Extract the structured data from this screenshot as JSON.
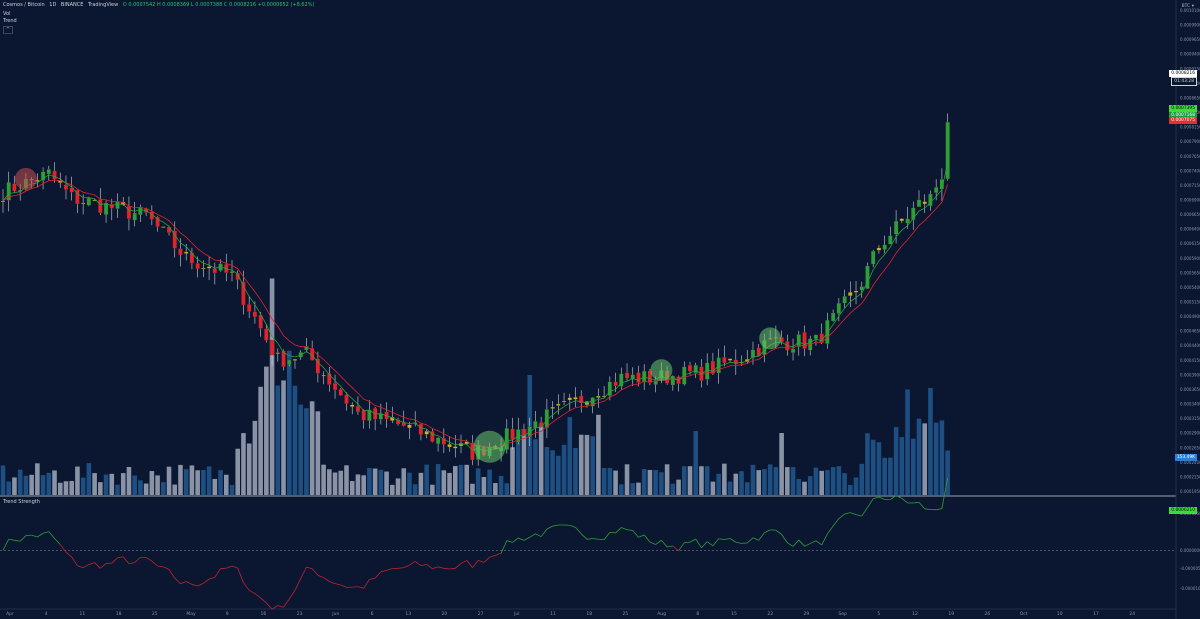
{
  "header": {
    "symbol": "Cosmos / Bitcoin",
    "interval": "1D",
    "exchange": "BINANCE",
    "source": "TradingView",
    "ohlc": "O 0.0007542  H 0.0008369  L 0.0007388  C 0.0008216  +0.0000652 (+8.62%)",
    "vol_label": "Vol",
    "trend_label": "Trend",
    "toggle_label": "^",
    "indicator_label": "Trend Strength",
    "currency": "BTC ▾"
  },
  "price_tags": {
    "last": "0.0008216",
    "last_time": "01:43:28",
    "ma_green": "0.0007395",
    "ma_green2": "0.0007168",
    "ma_red": "0.0007075",
    "volume": "153.49K",
    "indicator": "0.0000210"
  },
  "chart_data": {
    "type": "candlestick",
    "title": "Cosmos / Bitcoin · 1D · BINANCE",
    "price_axis": {
      "ylim": [
        0.000195,
        0.00101
      ],
      "ticks": [
        "0.0010100",
        "0.0009900",
        "0.0009650",
        "0.0009400",
        "0.0009150",
        "0.0008900",
        "0.0008650",
        "0.0008400",
        "0.0008150",
        "0.0007900",
        "0.0007650",
        "0.0007400",
        "0.0007150",
        "0.0006900",
        "0.0006650",
        "0.0006400",
        "0.0006150",
        "0.0005900",
        "0.0005650",
        "0.0005400",
        "0.0005150",
        "0.0004900",
        "0.0004650",
        "0.0004400",
        "0.0004150",
        "0.0003900",
        "0.0003650",
        "0.0003400",
        "0.0003150",
        "0.0002900",
        "0.0002650",
        "0.0002400",
        "0.0002150",
        "0.0001950"
      ]
    },
    "indicator_axis": {
      "ylim": [
        -1.3e-05,
        1.2e-05
      ],
      "ticks": [
        "0.0000050",
        "0.0000000",
        "-0.0000050",
        "-0.0000100"
      ]
    },
    "time_axis": [
      "Apr",
      "4",
      "11",
      "18",
      "25",
      "May",
      "9",
      "16",
      "23",
      "Jun",
      "6",
      "13",
      "20",
      "27",
      "Jul",
      "11",
      "18",
      "25",
      "Aug",
      "8",
      "15",
      "22",
      "29",
      "Sep",
      "5",
      "12",
      "19",
      "26",
      "Oct",
      "10",
      "17",
      "24"
    ],
    "anchors": [
      [
        0,
        0.0007
      ],
      [
        8,
        0.00073
      ],
      [
        12,
        0.00069
      ],
      [
        25,
        0.00066
      ],
      [
        32,
        0.00059
      ],
      [
        40,
        0.00056
      ],
      [
        48,
        0.00042
      ],
      [
        53,
        0.00043
      ],
      [
        62,
        0.00033
      ],
      [
        70,
        0.00031
      ],
      [
        82,
        0.000265
      ],
      [
        90,
        0.0003
      ],
      [
        100,
        0.00035
      ],
      [
        108,
        0.00039
      ],
      [
        114,
        0.00039
      ],
      [
        122,
        0.0004
      ],
      [
        128,
        0.00042
      ],
      [
        134,
        0.00045
      ],
      [
        142,
        0.00045
      ],
      [
        150,
        0.00055
      ],
      [
        153,
        0.00061
      ],
      [
        156,
        0.00064
      ],
      [
        160,
        0.00068
      ],
      [
        162,
        0.00069
      ],
      [
        164,
        0.00073
      ],
      [
        165,
        0.000822
      ]
    ],
    "volume_peaks": [
      [
        47,
        152
      ],
      [
        50,
        98
      ],
      [
        92,
        76
      ],
      [
        104,
        60
      ],
      [
        121,
        64
      ],
      [
        136,
        62
      ],
      [
        158,
        85
      ],
      [
        162,
        72
      ]
    ],
    "highlights": [
      {
        "bar": 4,
        "color": "red"
      },
      {
        "bar": 85,
        "color": "green",
        "size": "large"
      },
      {
        "bar": 115,
        "color": "green"
      },
      {
        "bar": 134,
        "color": "green"
      }
    ],
    "series": [
      {
        "type": "candles"
      },
      {
        "type": "ma_fast"
      },
      {
        "type": "ma_slow"
      },
      {
        "type": "volume"
      },
      {
        "type": "trend_strength"
      }
    ]
  }
}
